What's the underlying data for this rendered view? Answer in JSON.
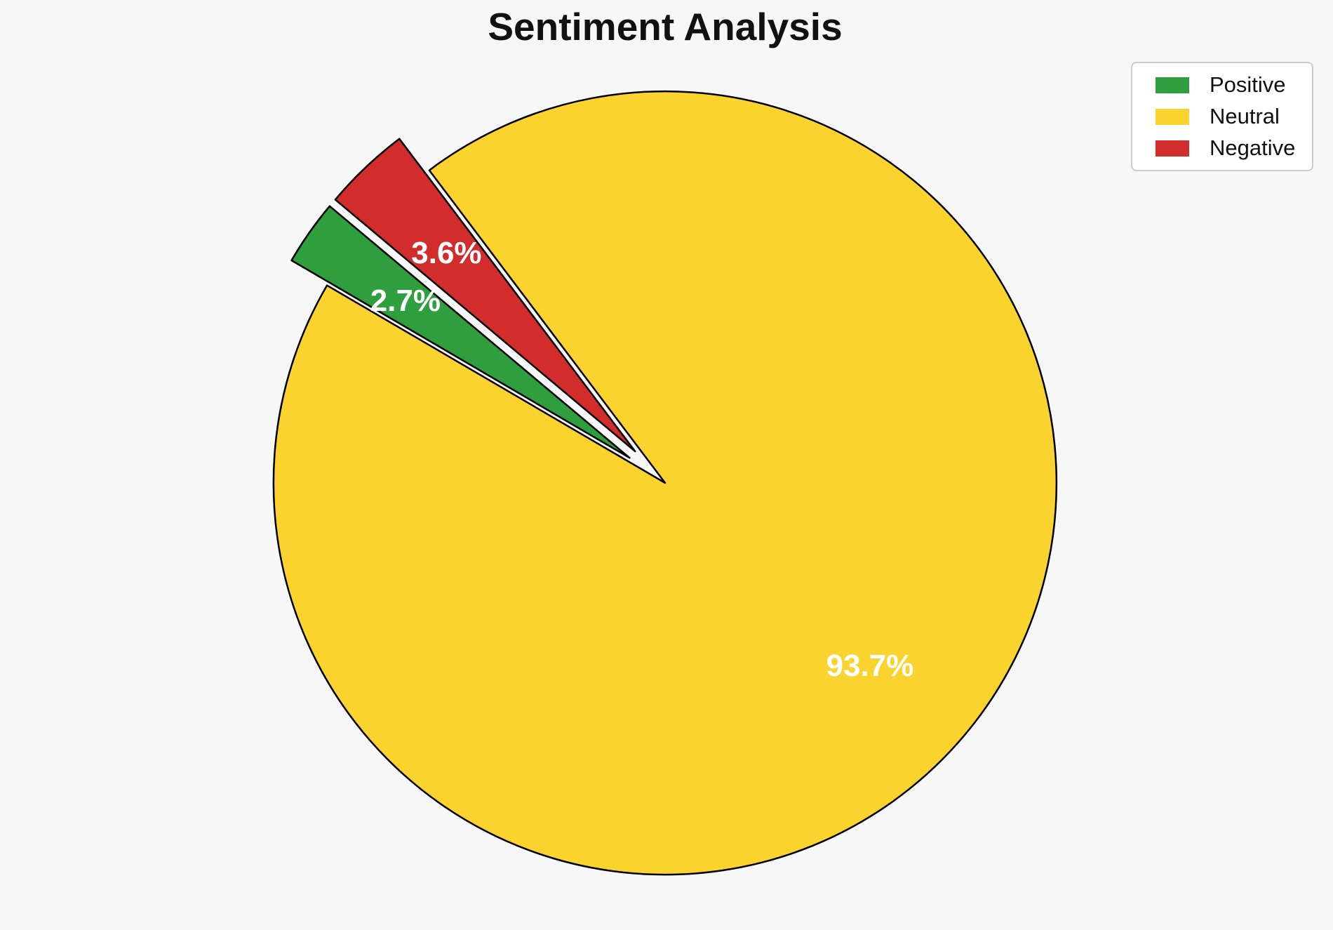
{
  "title": "Sentiment Analysis",
  "colors": {
    "background": "#f7f7f7",
    "title_text": "#111111",
    "legend_bg": "#ffffff",
    "legend_border": "#cccccc",
    "legend_text": "#111111"
  },
  "legend": {
    "position": "upper right",
    "items": [
      {
        "label": "Positive"
      },
      {
        "label": "Neutral"
      },
      {
        "label": "Negative"
      }
    ]
  },
  "chart_data": {
    "type": "pie",
    "title": "Sentiment Analysis",
    "labels": [
      "Positive",
      "Neutral",
      "Negative"
    ],
    "values": [
      2.7,
      93.7,
      3.6
    ],
    "pct_labels": [
      "2.7%",
      "93.7%",
      "3.6%"
    ],
    "colors": [
      "#2F9E3E",
      "#FBD32F",
      "#D32C2C"
    ],
    "edge_color": "#000000",
    "edge_width": 2.5,
    "pct_label_color": "#ffffff",
    "startangle": 140,
    "direction": "counterclockwise",
    "explode": [
      0.111,
      0,
      0.111
    ],
    "pctdistance": 0.7,
    "legend_position": "upper right",
    "grid": false
  }
}
